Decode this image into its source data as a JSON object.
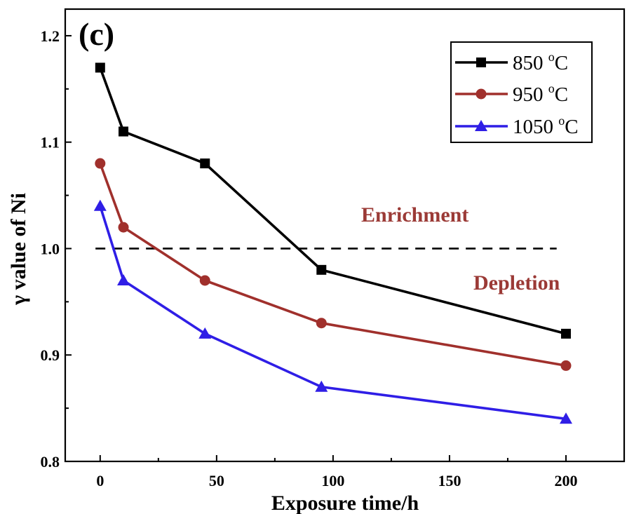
{
  "panel_label": "(c)",
  "annotations": {
    "enrichment": "Enrichment",
    "depletion": "Depletion",
    "color": "#9b3a36"
  },
  "chart_data": {
    "type": "line",
    "xlabel": "Exposure time/h",
    "ylabel": "γ value of Ni",
    "xlim": [
      -15,
      225
    ],
    "ylim": [
      0.8,
      1.225
    ],
    "xticks": [
      0,
      50,
      100,
      150,
      200
    ],
    "yticks": [
      0.8,
      0.9,
      1.0,
      1.1,
      1.2
    ],
    "x": [
      0,
      10,
      45,
      95,
      200
    ],
    "reference_line": {
      "y": 1.0,
      "style": "dashed",
      "color": "#000000"
    },
    "series": [
      {
        "name": "850 oC",
        "name_base": "850 ",
        "name_sup": "o",
        "name_tail": "C",
        "marker": "square",
        "color": "#000000",
        "values": [
          1.17,
          1.11,
          1.08,
          0.98,
          0.92
        ]
      },
      {
        "name": "950 oC",
        "name_base": "950 ",
        "name_sup": "o",
        "name_tail": "C",
        "marker": "circle",
        "color": "#a0302c",
        "values": [
          1.08,
          1.02,
          0.97,
          0.93,
          0.89
        ]
      },
      {
        "name": "1050 oC",
        "name_base": "1050 ",
        "name_sup": "o",
        "name_tail": "C",
        "marker": "triangle",
        "color": "#2f1ee6",
        "values": [
          1.04,
          0.97,
          0.92,
          0.87,
          0.84
        ]
      }
    ],
    "legend_position": "top-right",
    "grid": false
  }
}
